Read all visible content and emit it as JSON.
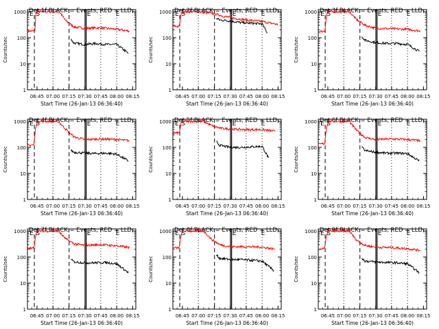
{
  "chart_data": [
    {
      "type": "line",
      "title": "Det 1f BLACK = Events, RED = LLD",
      "xlabel": "Start Time (26-Jan-13 06:36:40)",
      "ylabel": "Counts/sec",
      "x_ticks": [
        "06:45",
        "07:00",
        "07:15",
        "07:30",
        "07:45",
        "08:00",
        "08:15"
      ],
      "y_ticks": [
        "1",
        "10",
        "100",
        "1000"
      ],
      "ylim": [
        1,
        1200
      ],
      "yscale": "log",
      "xlim": [
        "06:36",
        "08:18"
      ],
      "markers": [
        "E",
        "S",
        "E",
        "E"
      ],
      "series": [
        {
          "name": "RED = LLD",
          "color": "#ff0000",
          "x": [
            "06:36",
            "06:42",
            "06:43",
            "06:44",
            "06:46",
            "06:47",
            "07:06",
            "07:12",
            "07:20",
            "07:30",
            "07:45",
            "08:00",
            "08:12"
          ],
          "y": [
            180,
            180,
            200,
            900,
            1000,
            1000,
            1000,
            450,
            260,
            230,
            240,
            210,
            180
          ]
        },
        {
          "name": "BLACK = Events",
          "color": "#000000",
          "x": [
            "07:17",
            "07:19",
            "07:22",
            "07:30",
            "07:40",
            "07:50",
            "08:00",
            "08:11"
          ],
          "y": [
            90,
            65,
            60,
            55,
            60,
            55,
            55,
            25
          ]
        }
      ]
    },
    {
      "type": "line",
      "title": "Det 2f BLACK = Events, RED = LLD",
      "xlabel": "Start Time (26-Jan-13 06:36:40)",
      "ylabel": "Counts/sec",
      "x_ticks": [
        "06:45",
        "07:00",
        "07:15",
        "07:30",
        "07:45",
        "08:00",
        "08:15"
      ],
      "y_ticks": [
        "1",
        "10",
        "100",
        "1000"
      ],
      "ylim": [
        1,
        1200
      ],
      "yscale": "log",
      "xlim": [
        "06:36",
        "08:18"
      ],
      "markers": [
        "E",
        "S",
        "E",
        "E"
      ],
      "series": [
        {
          "name": "RED = LLD",
          "color": "#ff0000",
          "x": [
            "06:36",
            "06:42",
            "06:44",
            "06:46",
            "07:00",
            "07:10",
            "07:17",
            "07:25",
            "07:35",
            "07:45",
            "08:00",
            "08:15"
          ],
          "y": [
            280,
            270,
            900,
            1000,
            1000,
            900,
            800,
            650,
            550,
            480,
            420,
            320
          ]
        },
        {
          "name": "BLACK = Events",
          "color": "#000000",
          "x": [
            "07:17",
            "07:20",
            "07:30",
            "07:40",
            "07:50",
            "08:00",
            "08:05"
          ],
          "y": [
            550,
            480,
            440,
            380,
            360,
            340,
            150
          ]
        }
      ]
    },
    {
      "type": "line",
      "title": "Det 3f BLACK = Events, RED = LLD",
      "xlabel": "Start Time (26-Jan-13 06:36:40)",
      "ylabel": "Counts/sec",
      "x_ticks": [
        "06:45",
        "07:00",
        "07:15",
        "07:30",
        "07:45",
        "08:00",
        "08:15"
      ],
      "y_ticks": [
        "1",
        "10",
        "100",
        "1000"
      ],
      "ylim": [
        1,
        1200
      ],
      "yscale": "log",
      "xlim": [
        "06:36",
        "08:18"
      ],
      "markers": [
        "E",
        "S",
        "E",
        "E"
      ],
      "series": [
        {
          "name": "RED = LLD",
          "color": "#ff0000",
          "x": [
            "06:36",
            "06:42",
            "06:44",
            "06:46",
            "07:05",
            "07:12",
            "07:20",
            "07:30",
            "07:45",
            "08:00",
            "08:12"
          ],
          "y": [
            170,
            180,
            800,
            1000,
            1000,
            500,
            300,
            230,
            220,
            210,
            180
          ]
        },
        {
          "name": "BLACK = Events",
          "color": "#000000",
          "x": [
            "07:17",
            "07:20",
            "07:30",
            "07:40",
            "07:50",
            "08:00",
            "08:11"
          ],
          "y": [
            110,
            80,
            65,
            60,
            60,
            55,
            30
          ]
        }
      ]
    },
    {
      "type": "line",
      "title": "Det 4f BLACK = Events, RED = LLD",
      "xlabel": "Start Time (26-Jan-13 06:36:40)",
      "ylabel": "Counts/sec",
      "x_ticks": [
        "06:45",
        "07:00",
        "07:15",
        "07:30",
        "07:45",
        "08:00",
        "08:15"
      ],
      "y_ticks": [
        "1",
        "10",
        "100",
        "1000"
      ],
      "ylim": [
        1,
        1200
      ],
      "yscale": "log",
      "xlim": [
        "06:36",
        "08:18"
      ],
      "markers": [
        "E",
        "S",
        "E",
        "E"
      ],
      "series": [
        {
          "name": "RED = LLD",
          "color": "#ff0000",
          "x": [
            "06:36",
            "06:42",
            "06:44",
            "06:46",
            "07:05",
            "07:12",
            "07:20",
            "07:30",
            "07:45",
            "08:00",
            "08:12"
          ],
          "y": [
            120,
            125,
            700,
            1000,
            1000,
            500,
            250,
            200,
            210,
            200,
            180
          ]
        },
        {
          "name": "BLACK = Events",
          "color": "#000000",
          "x": [
            "07:17",
            "07:20",
            "07:30",
            "07:40",
            "07:50",
            "08:00",
            "08:11"
          ],
          "y": [
            75,
            65,
            60,
            58,
            60,
            55,
            30
          ]
        }
      ]
    },
    {
      "type": "line",
      "title": "Det 5f BLACK = Events, RED = LLD",
      "xlabel": "Start Time (26-Jan-13 06:36:40)",
      "ylabel": "Counts/sec",
      "x_ticks": [
        "06:45",
        "07:00",
        "07:15",
        "07:30",
        "07:45",
        "08:00",
        "08:15"
      ],
      "y_ticks": [
        "1",
        "10",
        "100",
        "1000"
      ],
      "ylim": [
        1,
        1200
      ],
      "yscale": "log",
      "xlim": [
        "06:36",
        "08:18"
      ],
      "markers": [
        "E",
        "S",
        "E",
        "E"
      ],
      "series": [
        {
          "name": "RED = LLD",
          "color": "#ff0000",
          "x": [
            "06:36",
            "06:42",
            "06:44",
            "06:46",
            "07:05",
            "07:12",
            "07:20",
            "07:30",
            "07:45",
            "08:00",
            "08:12"
          ],
          "y": [
            350,
            360,
            900,
            1000,
            1000,
            700,
            550,
            500,
            480,
            480,
            420
          ]
        },
        {
          "name": "BLACK = Events",
          "color": "#000000",
          "x": [
            "07:17",
            "07:20",
            "07:30",
            "07:40",
            "07:50",
            "08:00",
            "08:06"
          ],
          "y": [
            170,
            120,
            100,
            100,
            105,
            110,
            40
          ]
        }
      ]
    },
    {
      "type": "line",
      "title": "Det 6f BLACK = Events, RED = LLD",
      "xlabel": "Start Time (26-Jan-13 06:36:40)",
      "ylabel": "Counts/sec",
      "x_ticks": [
        "06:45",
        "07:00",
        "07:15",
        "07:30",
        "07:45",
        "08:00",
        "08:15"
      ],
      "y_ticks": [
        "1",
        "10",
        "100",
        "1000"
      ],
      "ylim": [
        1,
        1200
      ],
      "yscale": "log",
      "xlim": [
        "06:36",
        "08:18"
      ],
      "markers": [
        "E",
        "S",
        "E",
        "E"
      ],
      "series": [
        {
          "name": "RED = LLD",
          "color": "#ff0000",
          "x": [
            "06:36",
            "06:42",
            "06:44",
            "06:46",
            "07:05",
            "07:12",
            "07:20",
            "07:30",
            "07:45",
            "08:00",
            "08:12"
          ],
          "y": [
            130,
            140,
            700,
            1000,
            1000,
            450,
            240,
            200,
            210,
            200,
            180
          ]
        },
        {
          "name": "BLACK = Events",
          "color": "#000000",
          "x": [
            "07:17",
            "07:20",
            "07:30",
            "07:40",
            "07:50",
            "08:00",
            "08:11"
          ],
          "y": [
            100,
            75,
            65,
            60,
            60,
            58,
            30
          ]
        }
      ]
    },
    {
      "type": "line",
      "title": "Det 7f BLACK = Events, RED = LLD",
      "xlabel": "Start Time (26-Jan-13 06:36:40)",
      "ylabel": "Counts/sec",
      "x_ticks": [
        "06:45",
        "07:00",
        "07:15",
        "07:30",
        "07:45",
        "08:00",
        "08:15"
      ],
      "y_ticks": [
        "1",
        "10",
        "100",
        "1000"
      ],
      "ylim": [
        1,
        1200
      ],
      "yscale": "log",
      "xlim": [
        "06:36",
        "08:18"
      ],
      "markers": [
        "E",
        "S",
        "E",
        "E"
      ],
      "series": [
        {
          "name": "RED = LLD",
          "color": "#ff0000",
          "x": [
            "06:36",
            "06:42",
            "06:44",
            "06:46",
            "07:05",
            "07:12",
            "07:20",
            "07:30",
            "07:45",
            "08:00",
            "08:12"
          ],
          "y": [
            210,
            220,
            800,
            1000,
            1000,
            500,
            320,
            280,
            300,
            270,
            230
          ]
        },
        {
          "name": "BLACK = Events",
          "color": "#000000",
          "x": [
            "07:17",
            "07:20",
            "07:30",
            "07:40",
            "07:50",
            "08:00",
            "08:11"
          ],
          "y": [
            80,
            65,
            60,
            60,
            62,
            55,
            25
          ]
        }
      ]
    },
    {
      "type": "line",
      "title": "Det 8f BLACK = Events, RED = LLD",
      "xlabel": "Start Time (26-Jan-13 06:36:40)",
      "ylabel": "Counts/sec",
      "x_ticks": [
        "06:45",
        "07:00",
        "07:15",
        "07:30",
        "07:45",
        "08:00",
        "08:15"
      ],
      "y_ticks": [
        "1",
        "10",
        "100",
        "1000"
      ],
      "ylim": [
        1,
        1200
      ],
      "yscale": "log",
      "xlim": [
        "06:36",
        "08:18"
      ],
      "markers": [
        "E",
        "S",
        "E",
        "E"
      ],
      "series": [
        {
          "name": "RED = LLD",
          "color": "#ff0000",
          "x": [
            "06:36",
            "06:42",
            "06:44",
            "06:46",
            "07:05",
            "07:12",
            "07:20",
            "07:30",
            "07:45",
            "08:00",
            "08:12"
          ],
          "y": [
            220,
            230,
            800,
            1000,
            1000,
            500,
            300,
            250,
            250,
            240,
            200
          ]
        },
        {
          "name": "BLACK = Events",
          "color": "#000000",
          "x": [
            "07:17",
            "07:20",
            "07:30",
            "07:40",
            "07:50",
            "08:00",
            "08:11"
          ],
          "y": [
            120,
            90,
            80,
            80,
            75,
            70,
            30
          ]
        }
      ]
    },
    {
      "type": "line",
      "title": "Det 9f BLACK = Events, RED = LLD",
      "xlabel": "Start Time (26-Jan-13 06:36:40)",
      "ylabel": "Counts/sec",
      "x_ticks": [
        "06:45",
        "07:00",
        "07:15",
        "07:30",
        "07:45",
        "08:00",
        "08:15"
      ],
      "y_ticks": [
        "1",
        "10",
        "100",
        "1000"
      ],
      "ylim": [
        1,
        1200
      ],
      "yscale": "log",
      "xlim": [
        "06:36",
        "08:18"
      ],
      "markers": [
        "E",
        "S",
        "E",
        "E"
      ],
      "series": [
        {
          "name": "RED = LLD",
          "color": "#ff0000",
          "x": [
            "06:36",
            "06:42",
            "06:44",
            "06:46",
            "07:05",
            "07:12",
            "07:20",
            "07:30",
            "07:45",
            "08:00",
            "08:12"
          ],
          "y": [
            200,
            210,
            800,
            1000,
            1000,
            450,
            280,
            240,
            230,
            210,
            180
          ]
        },
        {
          "name": "BLACK = Events",
          "color": "#000000",
          "x": [
            "07:17",
            "07:20",
            "07:30",
            "07:40",
            "07:50",
            "08:00",
            "08:11"
          ],
          "y": [
            90,
            70,
            65,
            62,
            60,
            55,
            25
          ]
        }
      ]
    }
  ]
}
